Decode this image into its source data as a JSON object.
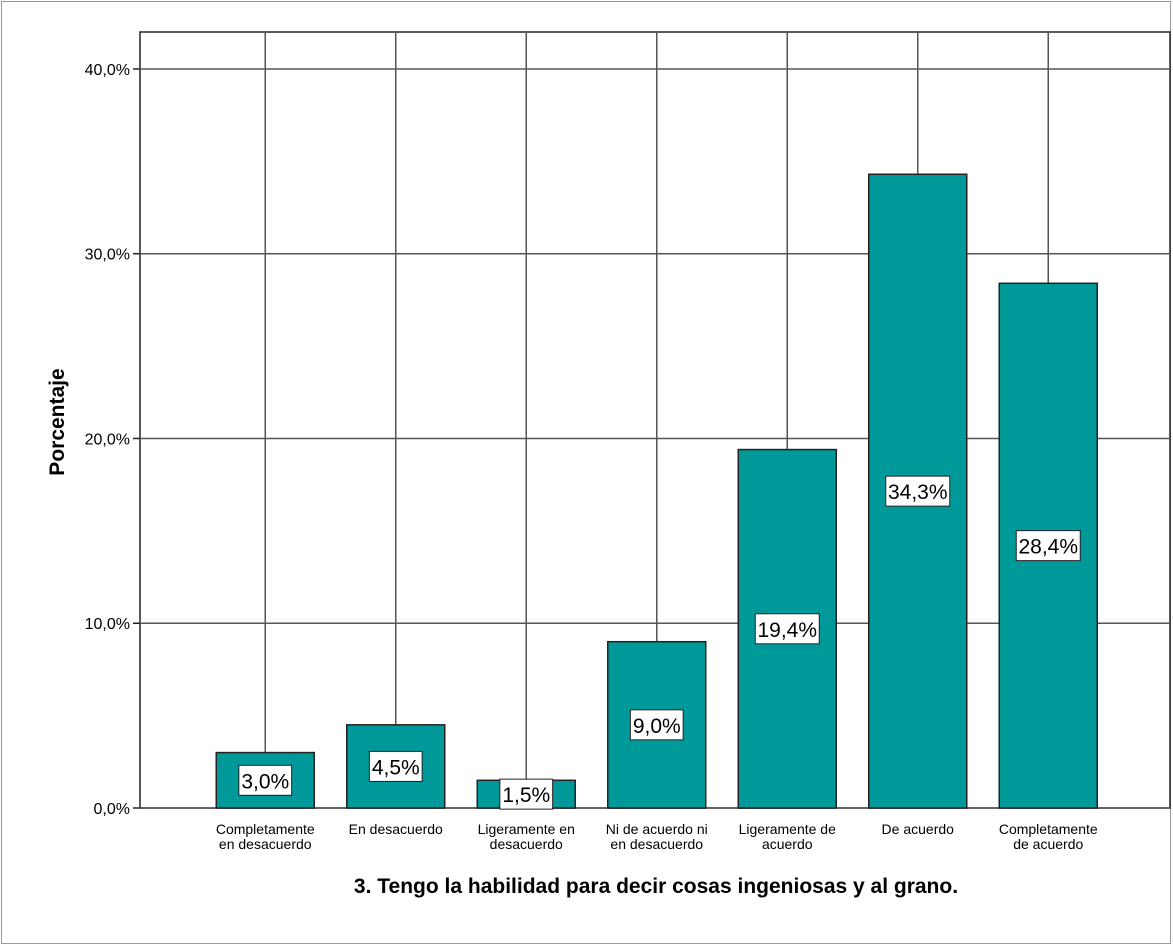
{
  "chart_data": {
    "type": "bar",
    "title": "",
    "xlabel": "3. Tengo la habilidad para decir cosas ingeniosas y al grano.",
    "ylabel": "Porcentaje",
    "categories": [
      [
        "Completamente",
        "en desacuerdo"
      ],
      [
        "En desacuerdo"
      ],
      [
        "Ligeramente en",
        "desacuerdo"
      ],
      [
        "Ni de acuerdo ni",
        "en desacuerdo"
      ],
      [
        "Ligeramente de",
        "acuerdo"
      ],
      [
        "De acuerdo"
      ],
      [
        "Completamente",
        "de acuerdo"
      ]
    ],
    "values": [
      3.0,
      4.5,
      1.5,
      9.0,
      19.4,
      34.3,
      28.4
    ],
    "data_labels": [
      "3,0%",
      "4,5%",
      "1,5%",
      "9,0%",
      "19,4%",
      "34,3%",
      "28,4%"
    ],
    "yticks": [
      0,
      10,
      20,
      30,
      40
    ],
    "ytick_labels": [
      "0,0%",
      "10,0%",
      "20,0%",
      "30,0%",
      "40,0%"
    ],
    "ylim": [
      0,
      42
    ],
    "grid": true,
    "bar_color": "#009999",
    "grid_color": "#555555"
  }
}
